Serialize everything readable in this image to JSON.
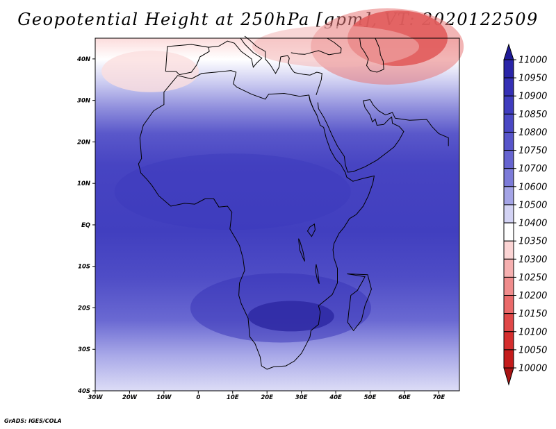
{
  "title": "Geopotential Height at 250hPa [gpm], VT: 2020122509",
  "footer": "GrADS: IGES/COLA",
  "map": {
    "lon_range": [
      -30,
      76
    ],
    "lat_range": [
      -40,
      45
    ],
    "x_ticks": [
      {
        "lon": -30,
        "label": "30W"
      },
      {
        "lon": -20,
        "label": "20W"
      },
      {
        "lon": -10,
        "label": "10W"
      },
      {
        "lon": 0,
        "label": "0"
      },
      {
        "lon": 10,
        "label": "10E"
      },
      {
        "lon": 20,
        "label": "20E"
      },
      {
        "lon": 30,
        "label": "30E"
      },
      {
        "lon": 40,
        "label": "40E"
      },
      {
        "lon": 50,
        "label": "50E"
      },
      {
        "lon": 60,
        "label": "60E"
      },
      {
        "lon": 70,
        "label": "70E"
      }
    ],
    "y_ticks": [
      {
        "lat": 40,
        "label": "40N"
      },
      {
        "lat": 30,
        "label": "30N"
      },
      {
        "lat": 20,
        "label": "20N"
      },
      {
        "lat": 10,
        "label": "10N"
      },
      {
        "lat": 0,
        "label": "EQ"
      },
      {
        "lat": -10,
        "label": "10S"
      },
      {
        "lat": -20,
        "label": "20S"
      },
      {
        "lat": -30,
        "label": "30S"
      },
      {
        "lat": -40,
        "label": "40S"
      }
    ],
    "field": "Geopotential Height at 250hPa",
    "units": "gpm"
  },
  "colorbar": {
    "levels": [
      "11000",
      "10950",
      "10900",
      "10850",
      "10800",
      "10750",
      "10700",
      "10600",
      "10500",
      "10400",
      "10350",
      "10300",
      "10250",
      "10200",
      "10150",
      "10100",
      "10050",
      "10000"
    ],
    "colors": [
      "#1f1a96",
      "#2a25a8",
      "#3530b5",
      "#3f3cbe",
      "#4a48c4",
      "#5755ca",
      "#6664d0",
      "#7c7bd8",
      "#a4a4e6",
      "#d3d3f4",
      "#ffffff",
      "#fbd4d4",
      "#f6b0b0",
      "#f08c8c",
      "#ea6a6a",
      "#e04848",
      "#d52e2e",
      "#c41c1c",
      "#a81414"
    ]
  }
}
